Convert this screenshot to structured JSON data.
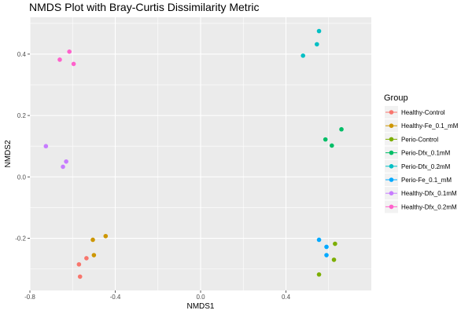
{
  "chart_data": {
    "type": "scatter",
    "title": "NMDS Plot with Bray-Curtis Dissimilarity Metric",
    "xlabel": "NMDS1",
    "ylabel": "NMDS2",
    "xlim": [
      -0.8,
      0.8
    ],
    "ylim": [
      -0.37,
      0.52
    ],
    "xticks": [
      -0.8,
      -0.4,
      0.0,
      0.4
    ],
    "yticks": [
      -0.2,
      0.0,
      0.2,
      0.4
    ],
    "xtick_labels": [
      "-0.8",
      "-0.4",
      "0.0",
      "0.4"
    ],
    "ytick_labels": [
      "-0.2",
      "0.0",
      "0.2",
      "0.4"
    ],
    "grid": true,
    "legend_title": "Group",
    "legend_position": "right",
    "series": [
      {
        "name": "Healthy-Control",
        "color": "#F8766D",
        "points": [
          [
            -0.535,
            -0.265
          ],
          [
            -0.57,
            -0.285
          ],
          [
            -0.565,
            -0.325
          ]
        ]
      },
      {
        "name": "Healthy-Fe_0.1_mM",
        "color": "#CD9600",
        "points": [
          [
            -0.445,
            -0.193
          ],
          [
            -0.505,
            -0.205
          ],
          [
            -0.5,
            -0.255
          ]
        ]
      },
      {
        "name": "Perio-Control",
        "color": "#7CAE00",
        "points": [
          [
            0.63,
            -0.218
          ],
          [
            0.625,
            -0.27
          ],
          [
            0.555,
            -0.318
          ]
        ]
      },
      {
        "name": "Perio-Dfx_0.1mM",
        "color": "#00BE67",
        "points": [
          [
            0.66,
            0.155
          ],
          [
            0.585,
            0.122
          ],
          [
            0.615,
            0.102
          ]
        ]
      },
      {
        "name": "Perio-Dfx_0.2mM",
        "color": "#00BFC4",
        "points": [
          [
            0.555,
            0.475
          ],
          [
            0.545,
            0.432
          ],
          [
            0.48,
            0.395
          ]
        ]
      },
      {
        "name": "Perio-Fe_0.1_mM",
        "color": "#00A9FF",
        "points": [
          [
            0.555,
            -0.205
          ],
          [
            0.59,
            -0.228
          ],
          [
            0.59,
            -0.255
          ]
        ]
      },
      {
        "name": "Healthy-Dfx_0.1mM",
        "color": "#C77CFF",
        "points": [
          [
            -0.725,
            0.1
          ],
          [
            -0.63,
            0.05
          ],
          [
            -0.645,
            0.033
          ]
        ]
      },
      {
        "name": "Healthy-Dfx_0.2mM",
        "color": "#FF61CC",
        "points": [
          [
            -0.615,
            0.408
          ],
          [
            -0.66,
            0.382
          ],
          [
            -0.595,
            0.368
          ]
        ]
      }
    ]
  }
}
